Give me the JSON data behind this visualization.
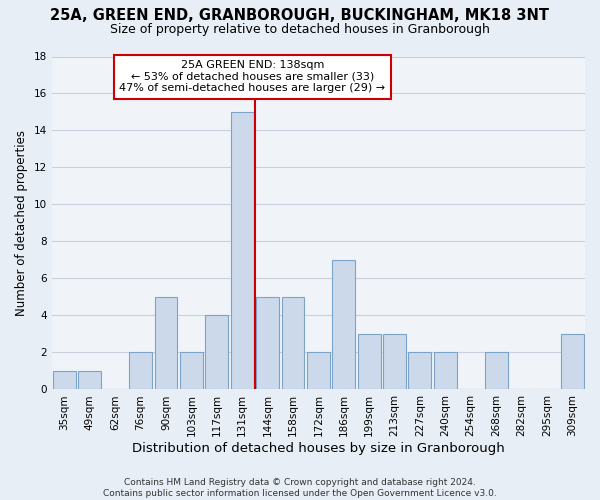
{
  "title": "25A, GREEN END, GRANBOROUGH, BUCKINGHAM, MK18 3NT",
  "subtitle": "Size of property relative to detached houses in Granborough",
  "xlabel": "Distribution of detached houses by size in Granborough",
  "ylabel": "Number of detached properties",
  "bins": [
    "35sqm",
    "49sqm",
    "62sqm",
    "76sqm",
    "90sqm",
    "103sqm",
    "117sqm",
    "131sqm",
    "144sqm",
    "158sqm",
    "172sqm",
    "186sqm",
    "199sqm",
    "213sqm",
    "227sqm",
    "240sqm",
    "254sqm",
    "268sqm",
    "282sqm",
    "295sqm",
    "309sqm"
  ],
  "bar_values": [
    1,
    1,
    0,
    2,
    5,
    2,
    4,
    15,
    5,
    5,
    2,
    7,
    3,
    3,
    2,
    2,
    0,
    2,
    0,
    0,
    3
  ],
  "bar_color": "#ccd9ea",
  "bar_edge_color": "#7ba3c8",
  "vline_color": "#cc0000",
  "annotation_line1": "25A GREEN END: 138sqm",
  "annotation_line2": "← 53% of detached houses are smaller (33)",
  "annotation_line3": "47% of semi-detached houses are larger (29) →",
  "annotation_box_color": "#cc0000",
  "ylim": [
    0,
    18
  ],
  "yticks": [
    0,
    2,
    4,
    6,
    8,
    10,
    12,
    14,
    16,
    18
  ],
  "background_color": "#e8eef5",
  "axes_color": "#f0f4f9",
  "grid_color": "#c8d0dc",
  "footer_text": "Contains HM Land Registry data © Crown copyright and database right 2024.\nContains public sector information licensed under the Open Government Licence v3.0.",
  "title_fontsize": 10.5,
  "subtitle_fontsize": 9,
  "xlabel_fontsize": 9.5,
  "ylabel_fontsize": 8.5,
  "tick_fontsize": 7.5,
  "footer_fontsize": 6.5
}
